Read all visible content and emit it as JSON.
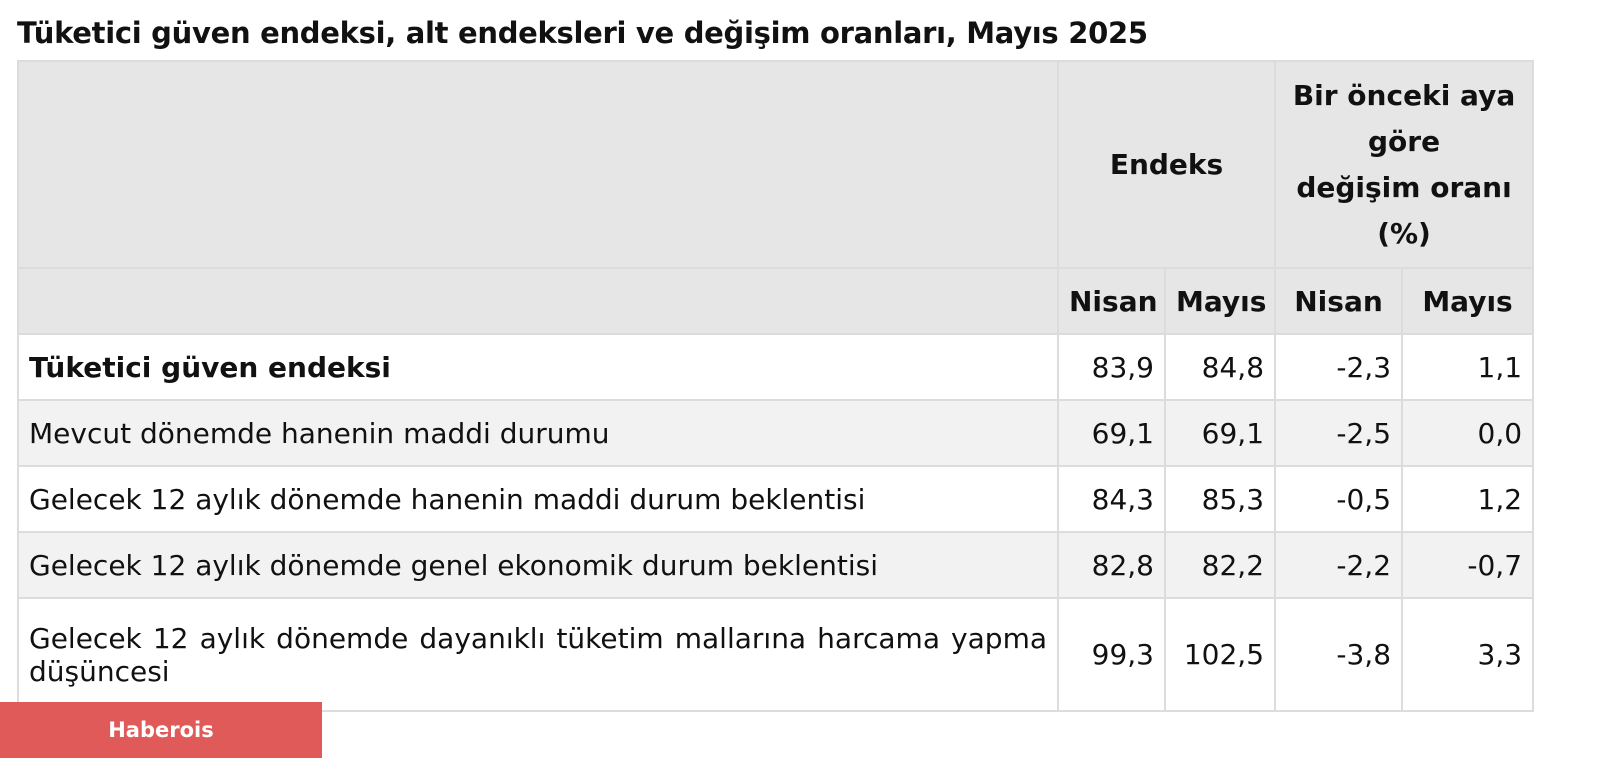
{
  "title": "Tüketici güven endeksi, alt endeksleri ve değişim oranları, Mayıs 2025",
  "table": {
    "group_headers": [
      "Endeks",
      [
        "Bir önceki aya göre",
        "değişim oranı",
        "(%)"
      ]
    ],
    "sub_headers": [
      "Nisan",
      "Mayıs",
      "Nisan",
      "Mayıs"
    ],
    "rows": [
      [
        "Tüketici güven endeksi",
        "83,9",
        "84,8",
        "-2,3",
        "1,1"
      ],
      [
        "Mevcut dönemde hanenin maddi durumu",
        "69,1",
        "69,1",
        "-2,5",
        "0,0"
      ],
      [
        "Gelecek 12 aylık dönemde hanenin maddi durum beklentisi",
        "84,3",
        "85,3",
        "-0,5",
        "1,2"
      ],
      [
        "Gelecek 12 aylık dönemde genel ekonomik durum beklentisi",
        "82,8",
        "82,2",
        "-2,2",
        "-0,7"
      ],
      [
        "Gelecek 12 aylık dönemde dayanıklı tüketim mallarına harcama yapma düşüncesi",
        "99,3",
        "102,5",
        "-3,8",
        "3,3"
      ]
    ]
  },
  "watermark": "Haberois"
}
